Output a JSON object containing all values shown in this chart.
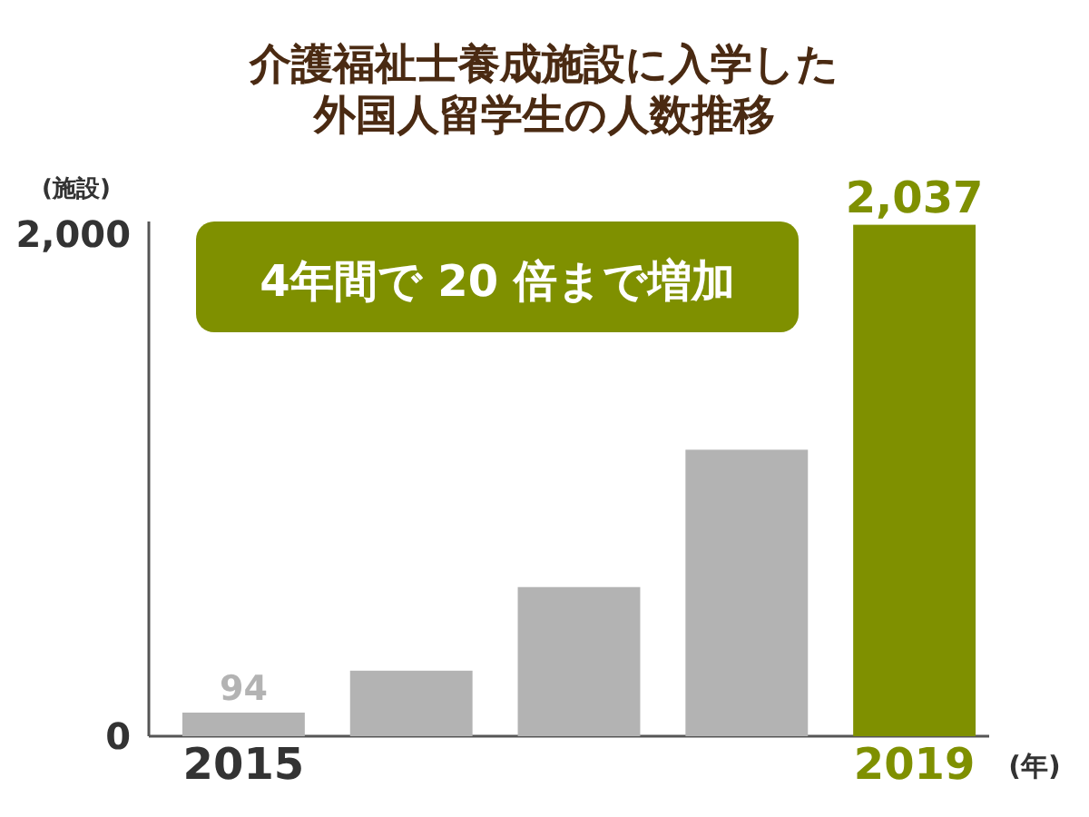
{
  "chart_data": {
    "type": "bar",
    "title": "介護福祉士養成施設に入学した外国人留学生の人数推移",
    "ylabel": "(施設)",
    "xlabel": "(年)",
    "categories": [
      "2015",
      null,
      null,
      null,
      "2019"
    ],
    "values": [
      94,
      261,
      594,
      1141,
      2037
    ],
    "colors": [
      "#b3b3b3",
      "#b3b3b3",
      "#b3b3b3",
      "#b3b3b3",
      "#7f9000"
    ],
    "value_labels": [
      "94",
      null,
      null,
      null,
      "2,037"
    ],
    "ylim": [
      0,
      2050
    ],
    "yticks": [
      0,
      {
        "value": 2000,
        "label": "2,000"
      }
    ],
    "annotations": [
      "4年間で 20 倍まで増加"
    ],
    "grid": false
  }
}
